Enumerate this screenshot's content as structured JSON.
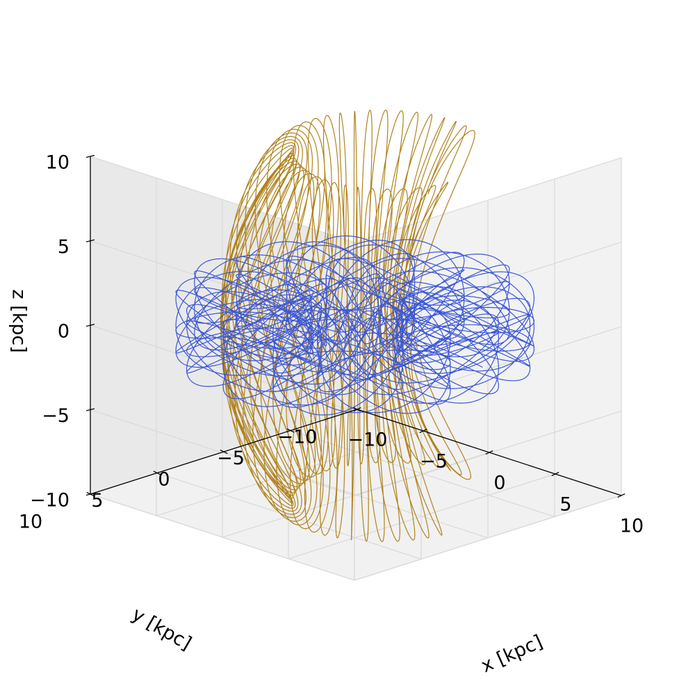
{
  "chart_data": {
    "type": "line3d",
    "title": "",
    "axes": {
      "x": {
        "label": "x [kpc]",
        "range": [
          -10,
          10
        ],
        "ticks": [
          -10,
          -5,
          0,
          5,
          10
        ],
        "tick_labels": [
          "−10",
          "−5",
          "0",
          "5",
          "10"
        ]
      },
      "y": {
        "label": "y [kpc]",
        "range": [
          -10,
          10
        ],
        "ticks": [
          -10,
          -5,
          0,
          5,
          10
        ],
        "tick_labels": [
          "−10",
          "−5",
          "0",
          "5",
          "10"
        ]
      },
      "z": {
        "label": "z [kpc]",
        "range": [
          -10,
          10
        ],
        "ticks": [
          -10,
          -5,
          0,
          5,
          10
        ],
        "tick_labels": [
          "−10",
          "−5",
          "0",
          "5",
          "10"
        ]
      }
    },
    "grid": true,
    "view": {
      "elevation_deg": 20,
      "azimuth_deg": -135
    },
    "legend": "none",
    "series": [
      {
        "kind": "vertical tube orbit",
        "color": "#b0821d",
        "approx_extent": {
          "cylindrical_radius": [
            3.5,
            7.8
          ],
          "z": [
            -10.5,
            10.5
          ]
        }
      },
      {
        "kind": "horizontal torus orbit",
        "color": "#3a56d6",
        "approx_extent": {
          "cylindrical_radius": [
            2.2,
            9.8
          ],
          "z": [
            -2.0,
            2.0
          ]
        }
      }
    ]
  }
}
